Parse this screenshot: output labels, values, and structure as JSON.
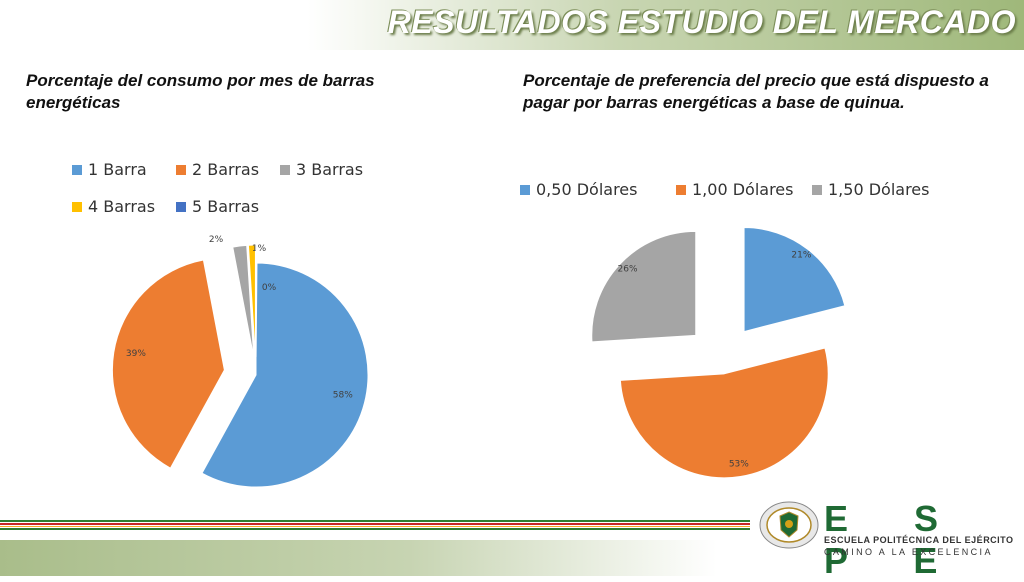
{
  "header": {
    "title": "RESULTADOS ESTUDIO DEL MERCADO"
  },
  "chart_data": [
    {
      "type": "pie",
      "title": "Porcentaje del consumo por mes de barras energéticas",
      "categories": [
        "1 Barra",
        "2 Barras",
        "3 Barras",
        "4 Barras",
        "5 Barras"
      ],
      "values": [
        58,
        39,
        2,
        1,
        0
      ],
      "labels": [
        "58%",
        "39%",
        "2%",
        "1%",
        "0%"
      ],
      "colors": [
        "#5b9bd5",
        "#ed7d31",
        "#a5a5a5",
        "#ffc000",
        "#4472c4"
      ],
      "legend_position": "top",
      "exploded": true
    },
    {
      "type": "pie",
      "title": "Porcentaje de preferencia del precio que está dispuesto a pagar por barras energéticas a base de quinua.",
      "categories": [
        "0,50 Dólares",
        "1,00 Dólares",
        "1,50 Dólares"
      ],
      "values": [
        21,
        53,
        26
      ],
      "labels": [
        "21%",
        "53%",
        "26%"
      ],
      "colors": [
        "#5b9bd5",
        "#ed7d31",
        "#a5a5a5"
      ],
      "legend_position": "top",
      "exploded": true
    }
  ],
  "footer": {
    "logo_text": "E S P E",
    "institution": "ESCUELA POLITÉCNICA DEL EJÉRCITO",
    "motto": "CAMINO A LA EXCELENCIA"
  }
}
